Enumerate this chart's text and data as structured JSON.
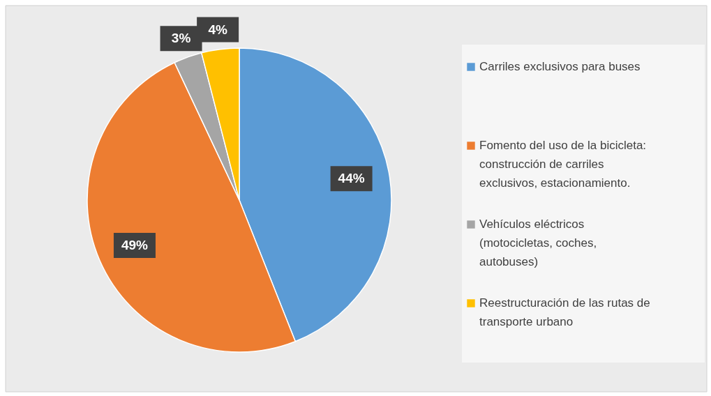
{
  "chart_data": {
    "type": "pie",
    "categories": [
      "Carriles exclusivos para buses",
      "Fomento del uso de la bicicleta: construcción de carriles exclusivos, estacionamiento.",
      "Vehículos eléctricos (motocicletas, coches, autobuses)",
      "Reestructuración de las rutas de transporte urbano"
    ],
    "values": [
      44,
      49,
      3,
      4
    ],
    "colors": [
      "#5b9bd5",
      "#ed7d31",
      "#a5a5a5",
      "#ffc000"
    ],
    "value_labels": [
      "44%",
      "49%",
      "3%",
      "4%"
    ],
    "legend": "right"
  }
}
